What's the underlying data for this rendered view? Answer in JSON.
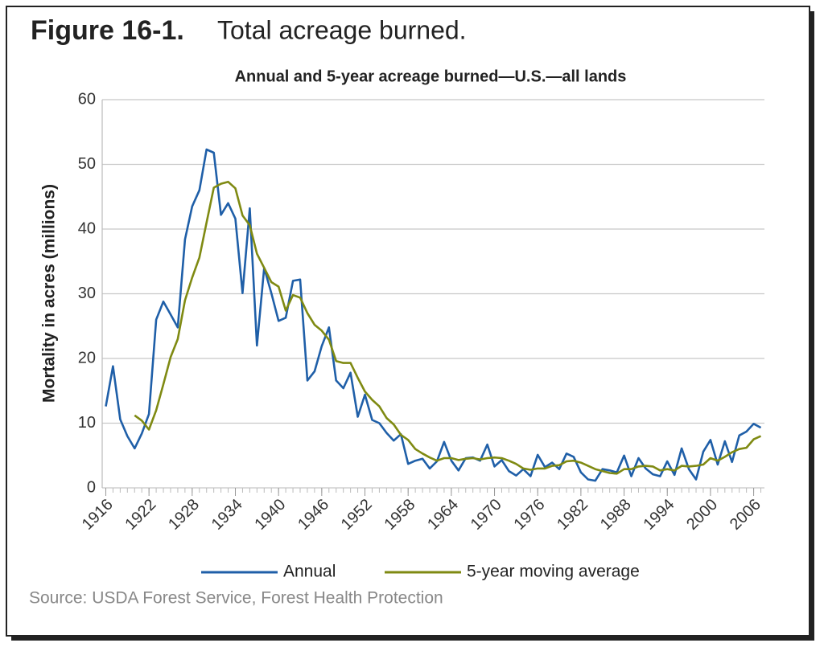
{
  "figure_label": "Figure 16-1.",
  "figure_caption": "Total acreage burned.",
  "source": "Source: USDA Forest Service, Forest Health Protection",
  "chart_data": {
    "type": "line",
    "title": "Annual and 5-year acreage burned—U.S.—all lands",
    "ylabel": "Mortality in acres (millions)",
    "x": [
      1916,
      1917,
      1918,
      1919,
      1920,
      1921,
      1922,
      1923,
      1924,
      1925,
      1926,
      1927,
      1928,
      1929,
      1930,
      1931,
      1932,
      1933,
      1934,
      1935,
      1936,
      1937,
      1938,
      1939,
      1940,
      1941,
      1942,
      1943,
      1944,
      1945,
      1946,
      1947,
      1948,
      1949,
      1950,
      1951,
      1952,
      1953,
      1954,
      1955,
      1956,
      1957,
      1958,
      1959,
      1960,
      1961,
      1962,
      1963,
      1964,
      1965,
      1966,
      1967,
      1968,
      1969,
      1970,
      1971,
      1972,
      1973,
      1974,
      1975,
      1976,
      1977,
      1978,
      1979,
      1980,
      1981,
      1982,
      1983,
      1984,
      1985,
      1986,
      1987,
      1988,
      1989,
      1990,
      1991,
      1992,
      1993,
      1994,
      1995,
      1996,
      1997,
      1998,
      1999,
      2000,
      2001,
      2002,
      2003,
      2004,
      2005,
      2006,
      2007
    ],
    "series": [
      {
        "name": "Annual",
        "color": "#1f5fa8",
        "values": [
          12.6,
          18.8,
          10.6,
          8.0,
          6.1,
          8.4,
          11.4,
          26.0,
          28.8,
          26.8,
          24.8,
          38.4,
          43.5,
          46.0,
          52.3,
          51.8,
          42.2,
          44.0,
          41.6,
          30.1,
          43.2,
          22.0,
          34.0,
          30.1,
          25.8,
          26.3,
          32.0,
          32.2,
          16.6,
          18.0,
          21.9,
          24.8,
          16.6,
          15.4,
          17.8,
          11.0,
          14.4,
          10.5,
          10.0,
          8.5,
          7.3,
          8.3,
          3.7,
          4.2,
          4.5,
          3.0,
          4.1,
          7.1,
          4.2,
          2.7,
          4.6,
          4.7,
          4.2,
          6.7,
          3.3,
          4.3,
          2.6,
          1.9,
          2.9,
          1.8,
          5.1,
          3.2,
          3.9,
          2.9,
          5.3,
          4.8,
          2.4,
          1.3,
          1.1,
          2.9,
          2.7,
          2.4,
          5.0,
          1.8,
          4.6,
          3.0,
          2.1,
          1.8,
          4.1,
          2.0,
          6.1,
          2.9,
          1.3,
          5.6,
          7.4,
          3.6,
          7.2,
          4.0,
          8.1,
          8.7,
          9.9,
          9.3
        ]
      },
      {
        "name": "5-year moving average",
        "color": "#7f8a12",
        "values": [
          null,
          null,
          null,
          null,
          11.2,
          10.4,
          9.0,
          12.0,
          16.0,
          20.2,
          23.0,
          29.0,
          32.5,
          35.6,
          41.0,
          46.4,
          47.0,
          47.3,
          46.3,
          42.1,
          40.6,
          36.2,
          34.0,
          31.8,
          31.1,
          27.4,
          29.8,
          29.4,
          27.0,
          25.2,
          24.3,
          22.9,
          19.6,
          19.3,
          19.3,
          17.0,
          14.9,
          13.6,
          12.6,
          10.8,
          9.8,
          8.2,
          7.4,
          6.0,
          5.3,
          4.7,
          4.2,
          4.6,
          4.6,
          4.3,
          4.5,
          4.6,
          4.4,
          4.6,
          4.7,
          4.6,
          4.2,
          3.7,
          3.0,
          2.8,
          3.0,
          3.0,
          3.4,
          3.5,
          4.1,
          4.2,
          3.9,
          3.4,
          2.9,
          2.6,
          2.3,
          2.2,
          2.9,
          2.9,
          3.3,
          3.4,
          3.3,
          2.7,
          2.9,
          2.7,
          3.4,
          3.3,
          3.4,
          3.6,
          4.6,
          4.2,
          4.8,
          5.5,
          6.0,
          6.2,
          7.5,
          8.0
        ]
      }
    ],
    "xlim": [
      1915.5,
      2007.5
    ],
    "xticks": [
      1916,
      1922,
      1928,
      1934,
      1940,
      1946,
      1952,
      1958,
      1964,
      1970,
      1976,
      1982,
      1988,
      1994,
      2000,
      2006
    ],
    "ylim": [
      0,
      60
    ],
    "yticks": [
      0,
      10,
      20,
      30,
      40,
      50,
      60
    ],
    "grid": true,
    "legend": "bottom"
  }
}
